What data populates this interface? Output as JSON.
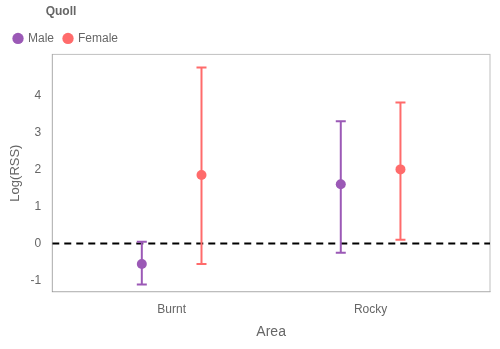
{
  "chart_data": {
    "type": "scatter",
    "xlabel": "Area",
    "ylabel": "Log(RSS)",
    "categories": [
      "Burnt",
      "Rocky"
    ],
    "series": [
      {
        "name": "Male",
        "color": "#9B59B6",
        "values": [
          -0.55,
          1.6
        ],
        "lower": [
          -1.1,
          -0.25
        ],
        "upper": [
          0.05,
          3.3
        ]
      },
      {
        "name": "Female",
        "color": "#FF6B6B",
        "values": [
          1.85,
          2.0
        ],
        "lower": [
          -0.55,
          0.1
        ],
        "upper": [
          4.75,
          3.8
        ]
      }
    ],
    "ylim": [
      -1.3,
      5.1
    ],
    "yticks": [
      -1,
      0,
      1,
      2,
      3,
      4
    ],
    "grid": false,
    "legend": "upper left",
    "legend_title": "Quoll",
    "marker": "circle",
    "hlines": [
      {
        "y": 0,
        "color": "#000000",
        "line_style": "dashed"
      }
    ]
  }
}
